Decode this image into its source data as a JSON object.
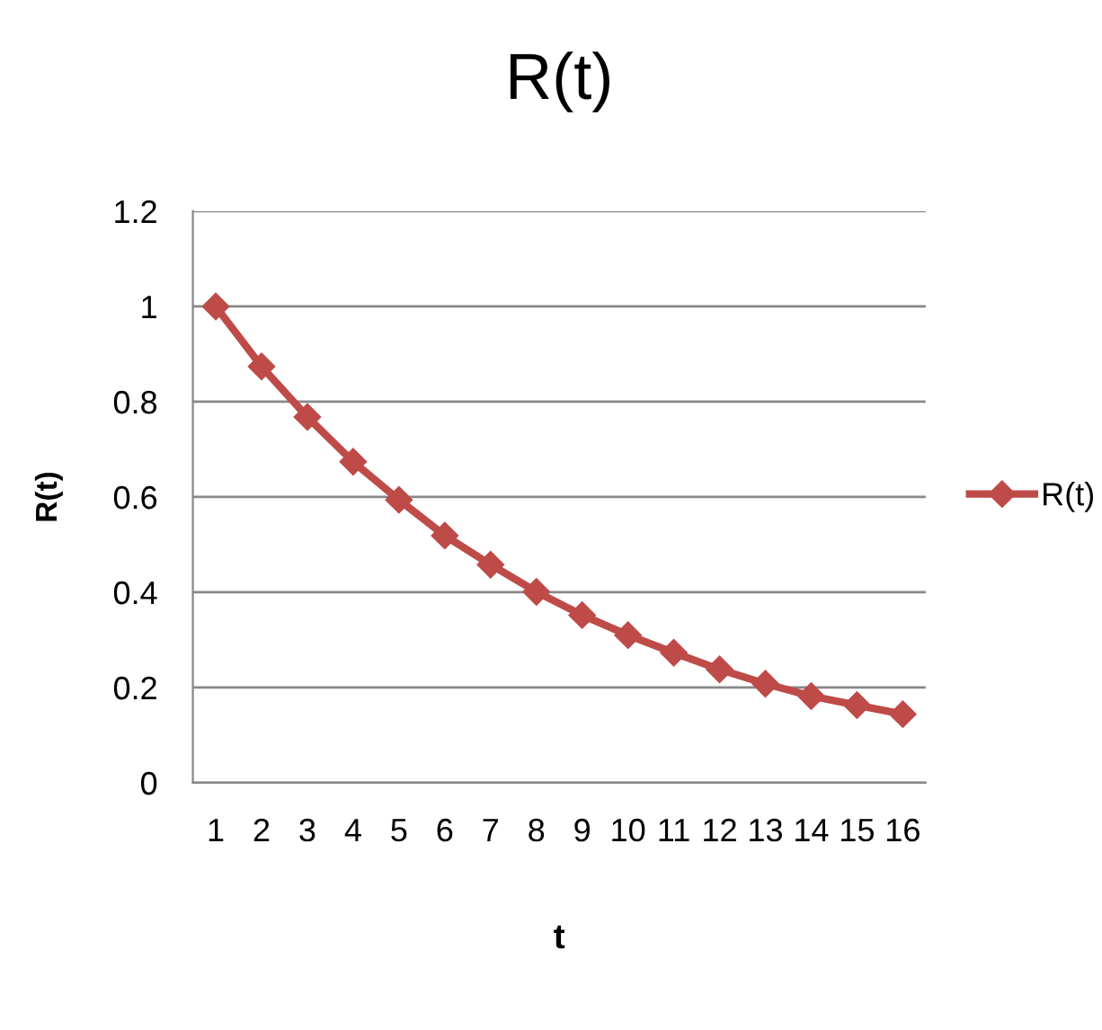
{
  "chart_data": {
    "type": "line",
    "title": "R(t)",
    "xlabel": "t",
    "ylabel": "R(t)",
    "categories": [
      "1",
      "2",
      "3",
      "4",
      "5",
      "6",
      "7",
      "8",
      "9",
      "10",
      "11",
      "12",
      "13",
      "14",
      "15",
      "16"
    ],
    "series": [
      {
        "name": "R(t)",
        "color": "#be4b48",
        "values": [
          1.0,
          0.874,
          0.768,
          0.674,
          0.594,
          0.519,
          0.458,
          0.401,
          0.352,
          0.31,
          0.273,
          0.238,
          0.208,
          0.182,
          0.163,
          0.144
        ]
      }
    ],
    "ylim": [
      0,
      1.2
    ],
    "yticks": [
      0,
      0.2,
      0.4,
      0.6,
      0.8,
      1,
      1.2
    ],
    "grid": "y",
    "legend": "right",
    "marker": "diamond",
    "line_style": "solid"
  }
}
